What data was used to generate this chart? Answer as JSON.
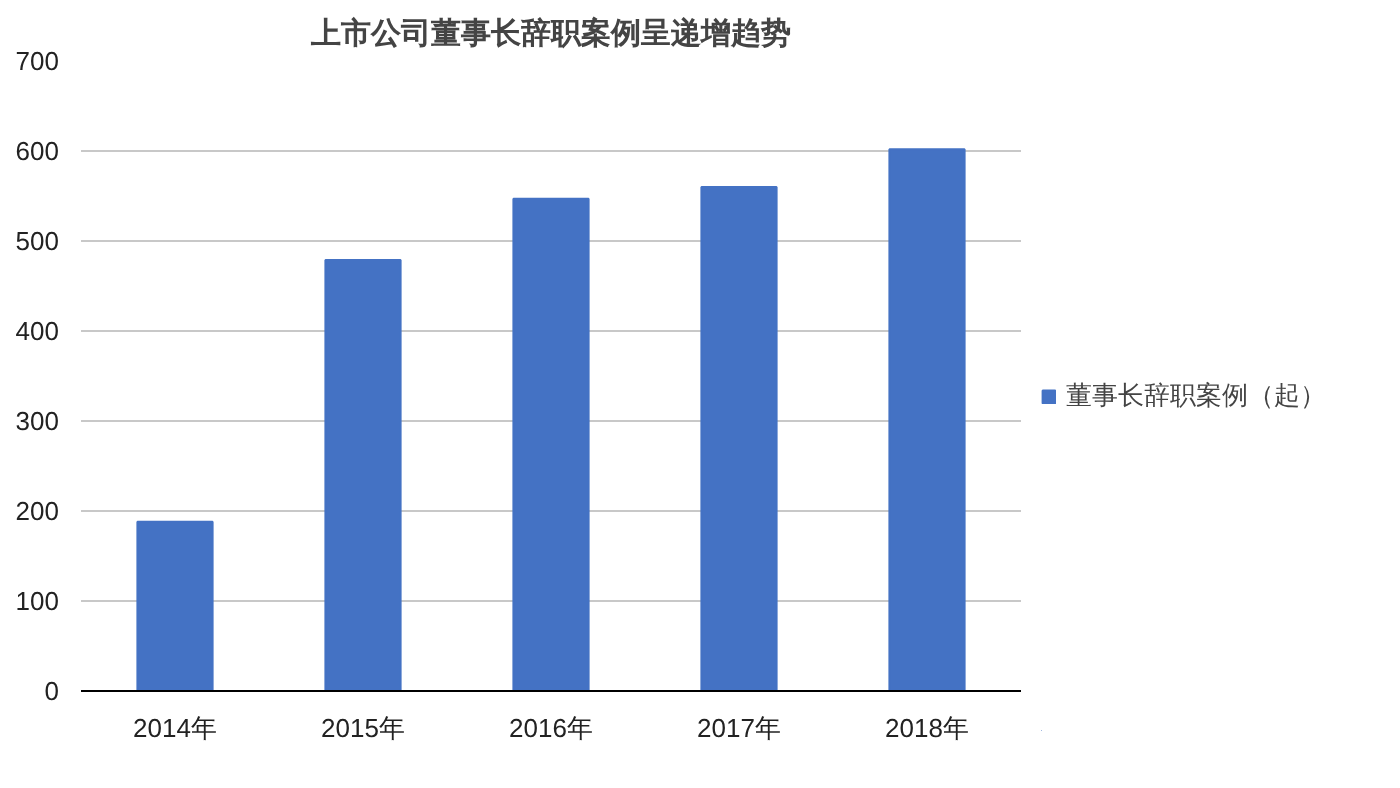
{
  "chart_data": {
    "type": "bar",
    "title": "上市公司董事长辞职案例呈递增趋势",
    "categories": [
      "2014年",
      "2015年",
      "2016年",
      "2017年",
      "2018年"
    ],
    "series": [
      {
        "name": "董事长辞职案例（起）",
        "color": "#4472c4",
        "values": [
          188,
          479,
          547,
          560,
          602
        ]
      }
    ],
    "ylim": [
      0,
      700
    ],
    "yticks": [
      0,
      100,
      200,
      300,
      400,
      500,
      600,
      700
    ],
    "grid": "y",
    "legend": "right"
  }
}
